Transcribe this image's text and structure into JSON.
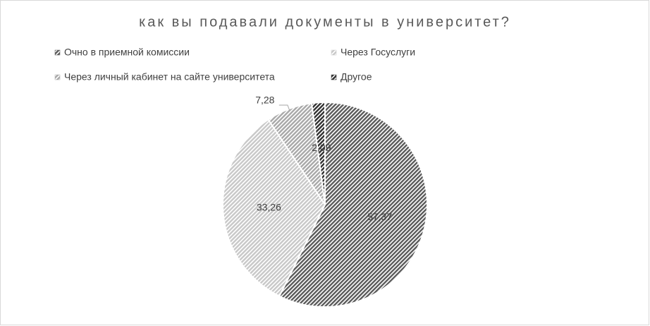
{
  "chart_data": {
    "type": "pie",
    "title": "как вы подавали документы в университет?",
    "categories": [
      "Очно в приемной комиссии",
      "Через Госуслуги",
      "Через личный кабинет на сайте университета",
      "Другое"
    ],
    "values": [
      57.37,
      33.26,
      7.28,
      2.09
    ],
    "value_labels": [
      "57,37",
      "33,26",
      "7,28",
      "2,09"
    ],
    "colors": [
      "#5a5a5a",
      "#c8c8c8",
      "#a8a8a8",
      "#303030"
    ]
  }
}
